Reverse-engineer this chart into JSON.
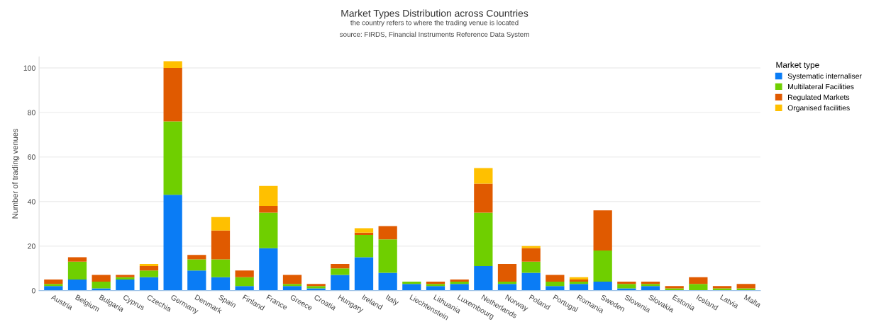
{
  "chart_data": {
    "type": "bar",
    "stacked": true,
    "title": "Market Types Distribution across Countries",
    "subtitle": "the country refers to where the trading venue is located",
    "annotations": [
      "source: FIRDS, Financial Instruments Reference Data System"
    ],
    "ylabel": "Number of trading venues",
    "legend_title": "Market type",
    "legend": "top right",
    "grid": "y",
    "ylim": [
      0,
      105
    ],
    "yticks": [
      0,
      20,
      40,
      60,
      80,
      100
    ],
    "categories": [
      "Austria",
      "Belgium",
      "Bulgaria",
      "Cyprus",
      "Czechia",
      "Germany",
      "Denmark",
      "Spain",
      "Finland",
      "France",
      "Greece",
      "Croatia",
      "Hungary",
      "Ireland",
      "Italy",
      "Liechtenstein",
      "Lithuania",
      "Luxembourg",
      "Netherlands",
      "Norway",
      "Poland",
      "Portugal",
      "Romania",
      "Sweden",
      "Slovenia",
      "Slovakia",
      "Estonia",
      "Iceland",
      "Latvia",
      "Malta"
    ],
    "series": [
      {
        "name": "Systematic internaliser",
        "color": "#0a7cf5",
        "values": [
          2,
          5,
          1,
          5,
          6,
          43,
          9,
          6,
          2,
          19,
          2,
          1,
          7,
          15,
          8,
          3,
          2,
          3,
          11,
          3,
          8,
          2,
          3,
          4,
          1,
          2,
          0,
          0,
          0,
          0
        ]
      },
      {
        "name": "Multilateral Facilities",
        "color": "#6fcf00",
        "values": [
          1,
          8,
          3,
          1,
          3,
          33,
          5,
          8,
          4,
          16,
          1,
          1,
          3,
          10,
          15,
          1,
          1,
          1,
          24,
          1,
          5,
          2,
          1,
          14,
          2,
          1,
          1,
          3,
          1,
          1
        ]
      },
      {
        "name": "Regulated Markets",
        "color": "#e05a00",
        "values": [
          2,
          2,
          3,
          1,
          2,
          24,
          2,
          13,
          3,
          3,
          4,
          1,
          2,
          1,
          6,
          0,
          1,
          1,
          13,
          8,
          6,
          3,
          1,
          18,
          1,
          1,
          1,
          3,
          1,
          2
        ]
      },
      {
        "name": "Organised facilities",
        "color": "#ffc000",
        "values": [
          0,
          0,
          0,
          0,
          1,
          3,
          0,
          6,
          0,
          9,
          0,
          0,
          0,
          2,
          0,
          0,
          0,
          0,
          7,
          0,
          1,
          0,
          1,
          0,
          0,
          0,
          0,
          0,
          0,
          0
        ]
      }
    ]
  }
}
